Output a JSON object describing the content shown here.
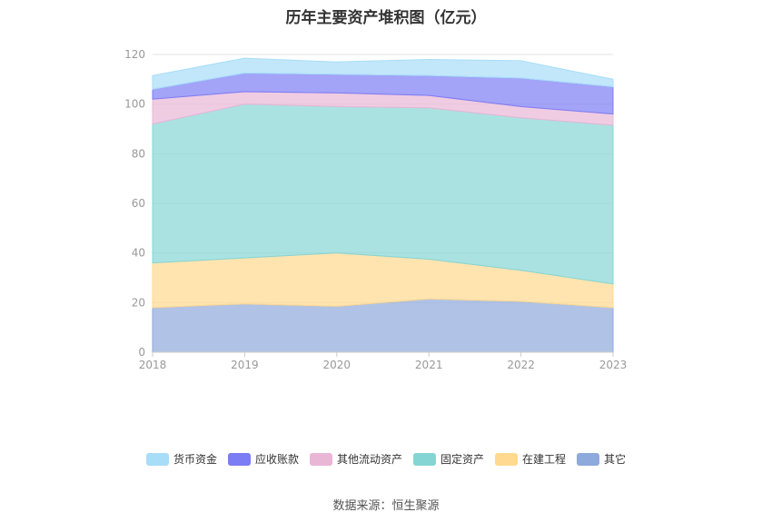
{
  "title": "历年主要资产堆积图（亿元）",
  "source": "数据来源：恒生聚源",
  "chart_data": {
    "type": "area",
    "stacked": true,
    "title": "历年主要资产堆积图（亿元）",
    "x": [
      "2018",
      "2019",
      "2020",
      "2021",
      "2022",
      "2023"
    ],
    "ylim": [
      0,
      120
    ],
    "yticks": [
      0,
      20,
      40,
      60,
      80,
      100,
      120
    ],
    "grid": true,
    "legend_position": "bottom",
    "series": [
      {
        "name": "其它",
        "color": "#8EA9DB",
        "values": [
          18,
          19.5,
          18.5,
          21.5,
          20.5,
          18
        ]
      },
      {
        "name": "在建工程",
        "color": "#FFD98F",
        "values": [
          18,
          18.5,
          21.5,
          16,
          12.5,
          9.5
        ]
      },
      {
        "name": "固定资产",
        "color": "#86D5D5",
        "values": [
          56,
          62,
          59,
          61,
          61.5,
          64
        ]
      },
      {
        "name": "其他流动资产",
        "color": "#E9B6D6",
        "values": [
          10,
          5,
          5.5,
          5,
          4.5,
          4.5
        ]
      },
      {
        "name": "应收账款",
        "color": "#7C7CF5",
        "values": [
          4,
          7.5,
          7.5,
          8,
          11.5,
          11
        ]
      },
      {
        "name": "货币资金",
        "color": "#A8DDF8",
        "values": [
          5.5,
          6,
          5,
          6.5,
          7,
          3
        ]
      }
    ]
  },
  "legend_order": [
    "货币资金",
    "应收账款",
    "其他流动资产",
    "固定资产",
    "在建工程",
    "其它"
  ]
}
